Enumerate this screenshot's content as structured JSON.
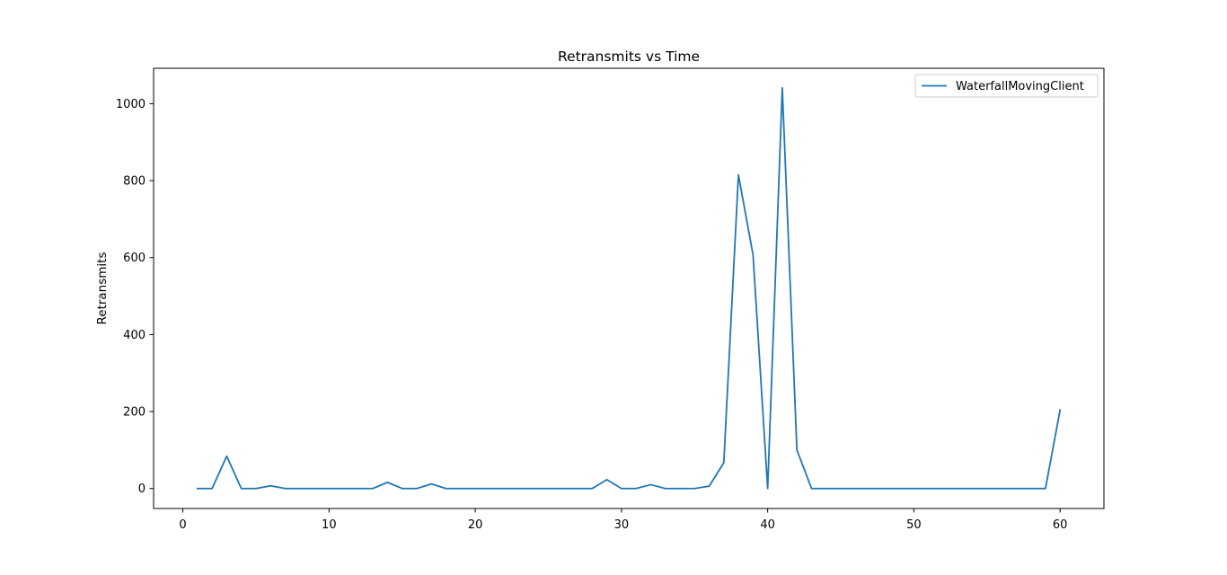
{
  "chart_data": {
    "type": "line",
    "title": "Retransmits vs Time",
    "xlabel": "",
    "ylabel": "Retransmits",
    "xlim": [
      -2,
      63
    ],
    "ylim": [
      -52,
      1092
    ],
    "xticks": [
      0,
      10,
      20,
      30,
      40,
      50,
      60
    ],
    "yticks": [
      0,
      200,
      400,
      600,
      800,
      1000
    ],
    "grid": false,
    "legend_position": "top-right",
    "series": [
      {
        "name": "WaterfallMovingClient",
        "color": "#1f77b4",
        "x": [
          1,
          2,
          3,
          4,
          5,
          6,
          7,
          8,
          9,
          10,
          11,
          12,
          13,
          14,
          15,
          16,
          17,
          18,
          19,
          20,
          21,
          22,
          23,
          24,
          25,
          26,
          27,
          28,
          29,
          30,
          31,
          32,
          33,
          34,
          35,
          36,
          37,
          38,
          39,
          40,
          41,
          42,
          43,
          44,
          45,
          46,
          47,
          48,
          49,
          50,
          51,
          52,
          53,
          54,
          55,
          56,
          57,
          58,
          59,
          60
        ],
        "y": [
          0,
          0,
          84,
          0,
          0,
          7,
          0,
          0,
          0,
          0,
          0,
          0,
          0,
          16,
          0,
          0,
          12,
          0,
          0,
          0,
          0,
          0,
          0,
          0,
          0,
          0,
          0,
          0,
          23,
          0,
          0,
          10,
          0,
          0,
          0,
          6,
          67,
          815,
          607,
          0,
          1041,
          100,
          0,
          0,
          0,
          0,
          0,
          0,
          0,
          0,
          0,
          0,
          0,
          0,
          0,
          0,
          0,
          0,
          0,
          204
        ]
      }
    ]
  }
}
